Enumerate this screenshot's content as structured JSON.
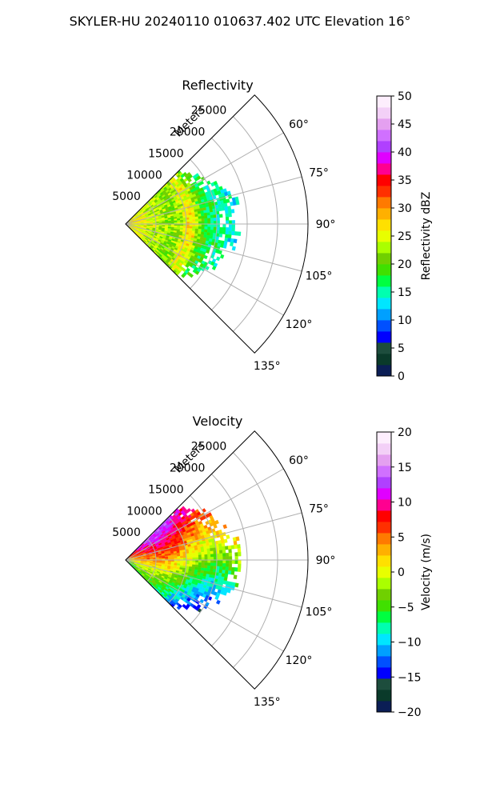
{
  "figure": {
    "title": "SKYLER-HU  20240110  010637.402 UTC Elevation 16°"
  },
  "chart_data": [
    {
      "type": "polar-sector",
      "title": "Reflectivity",
      "radial_label": "Meters",
      "radial_ticks": [
        "5000",
        "10000",
        "15000",
        "20000",
        "25000"
      ],
      "radial_values": [
        5000,
        10000,
        15000,
        20000,
        25000
      ],
      "r_max": 30000,
      "theta_range_deg": [
        45,
        135
      ],
      "theta_ticks": [
        "60°",
        "75°",
        "90°",
        "105°",
        "120°",
        "135°"
      ],
      "theta_values": [
        60,
        75,
        90,
        105,
        120,
        135
      ],
      "grid": true,
      "data_extent_m": 19000,
      "colorbar": {
        "label": "Reflectivity dBZ",
        "range": [
          0,
          50
        ],
        "ticks": [
          "0",
          "5",
          "10",
          "15",
          "20",
          "25",
          "30",
          "35",
          "40",
          "45",
          "50"
        ],
        "tick_values": [
          0,
          5,
          10,
          15,
          20,
          25,
          30,
          35,
          40,
          45,
          50
        ],
        "colors": [
          "#0b1e55",
          "#0a3a2a",
          "#1d4d3d",
          "#0000ff",
          "#0050ff",
          "#00a0ff",
          "#00e6ff",
          "#00ffb0",
          "#00ff40",
          "#40e000",
          "#70d000",
          "#aaff00",
          "#e8ff00",
          "#ffe000",
          "#ffb000",
          "#ff7a00",
          "#ff3000",
          "#ff0000",
          "#ff0090",
          "#e000ff",
          "#b040ff",
          "#d070ff",
          "#e4a0f0",
          "#f3d0f7",
          "#fdeefd"
        ]
      }
    },
    {
      "type": "polar-sector",
      "title": "Velocity",
      "radial_label": "Meters",
      "radial_ticks": [
        "5000",
        "10000",
        "15000",
        "20000",
        "25000"
      ],
      "radial_values": [
        5000,
        10000,
        15000,
        20000,
        25000
      ],
      "r_max": 30000,
      "theta_range_deg": [
        45,
        135
      ],
      "theta_ticks": [
        "60°",
        "75°",
        "90°",
        "105°",
        "120°",
        "135°"
      ],
      "theta_values": [
        60,
        75,
        90,
        105,
        120,
        135
      ],
      "grid": true,
      "data_extent_m": 19000,
      "colorbar": {
        "label": "Velocity (m/s)",
        "range": [
          -20,
          20
        ],
        "ticks": [
          "−20",
          "−15",
          "−10",
          "−5",
          "0",
          "5",
          "10",
          "15",
          "20"
        ],
        "tick_values": [
          -20,
          -15,
          -10,
          -5,
          0,
          5,
          10,
          15,
          20
        ],
        "colors": [
          "#0b1e55",
          "#0a3a2a",
          "#1d4d3d",
          "#0000ff",
          "#0050ff",
          "#00a0ff",
          "#00e6ff",
          "#00ffb0",
          "#00ff40",
          "#40e000",
          "#70d000",
          "#aaff00",
          "#e8ff00",
          "#ffe000",
          "#ffb000",
          "#ff7a00",
          "#ff3000",
          "#ff0000",
          "#ff0090",
          "#e000ff",
          "#b040ff",
          "#d070ff",
          "#e4a0f0",
          "#f3d0f7",
          "#fdeefd"
        ]
      }
    }
  ]
}
